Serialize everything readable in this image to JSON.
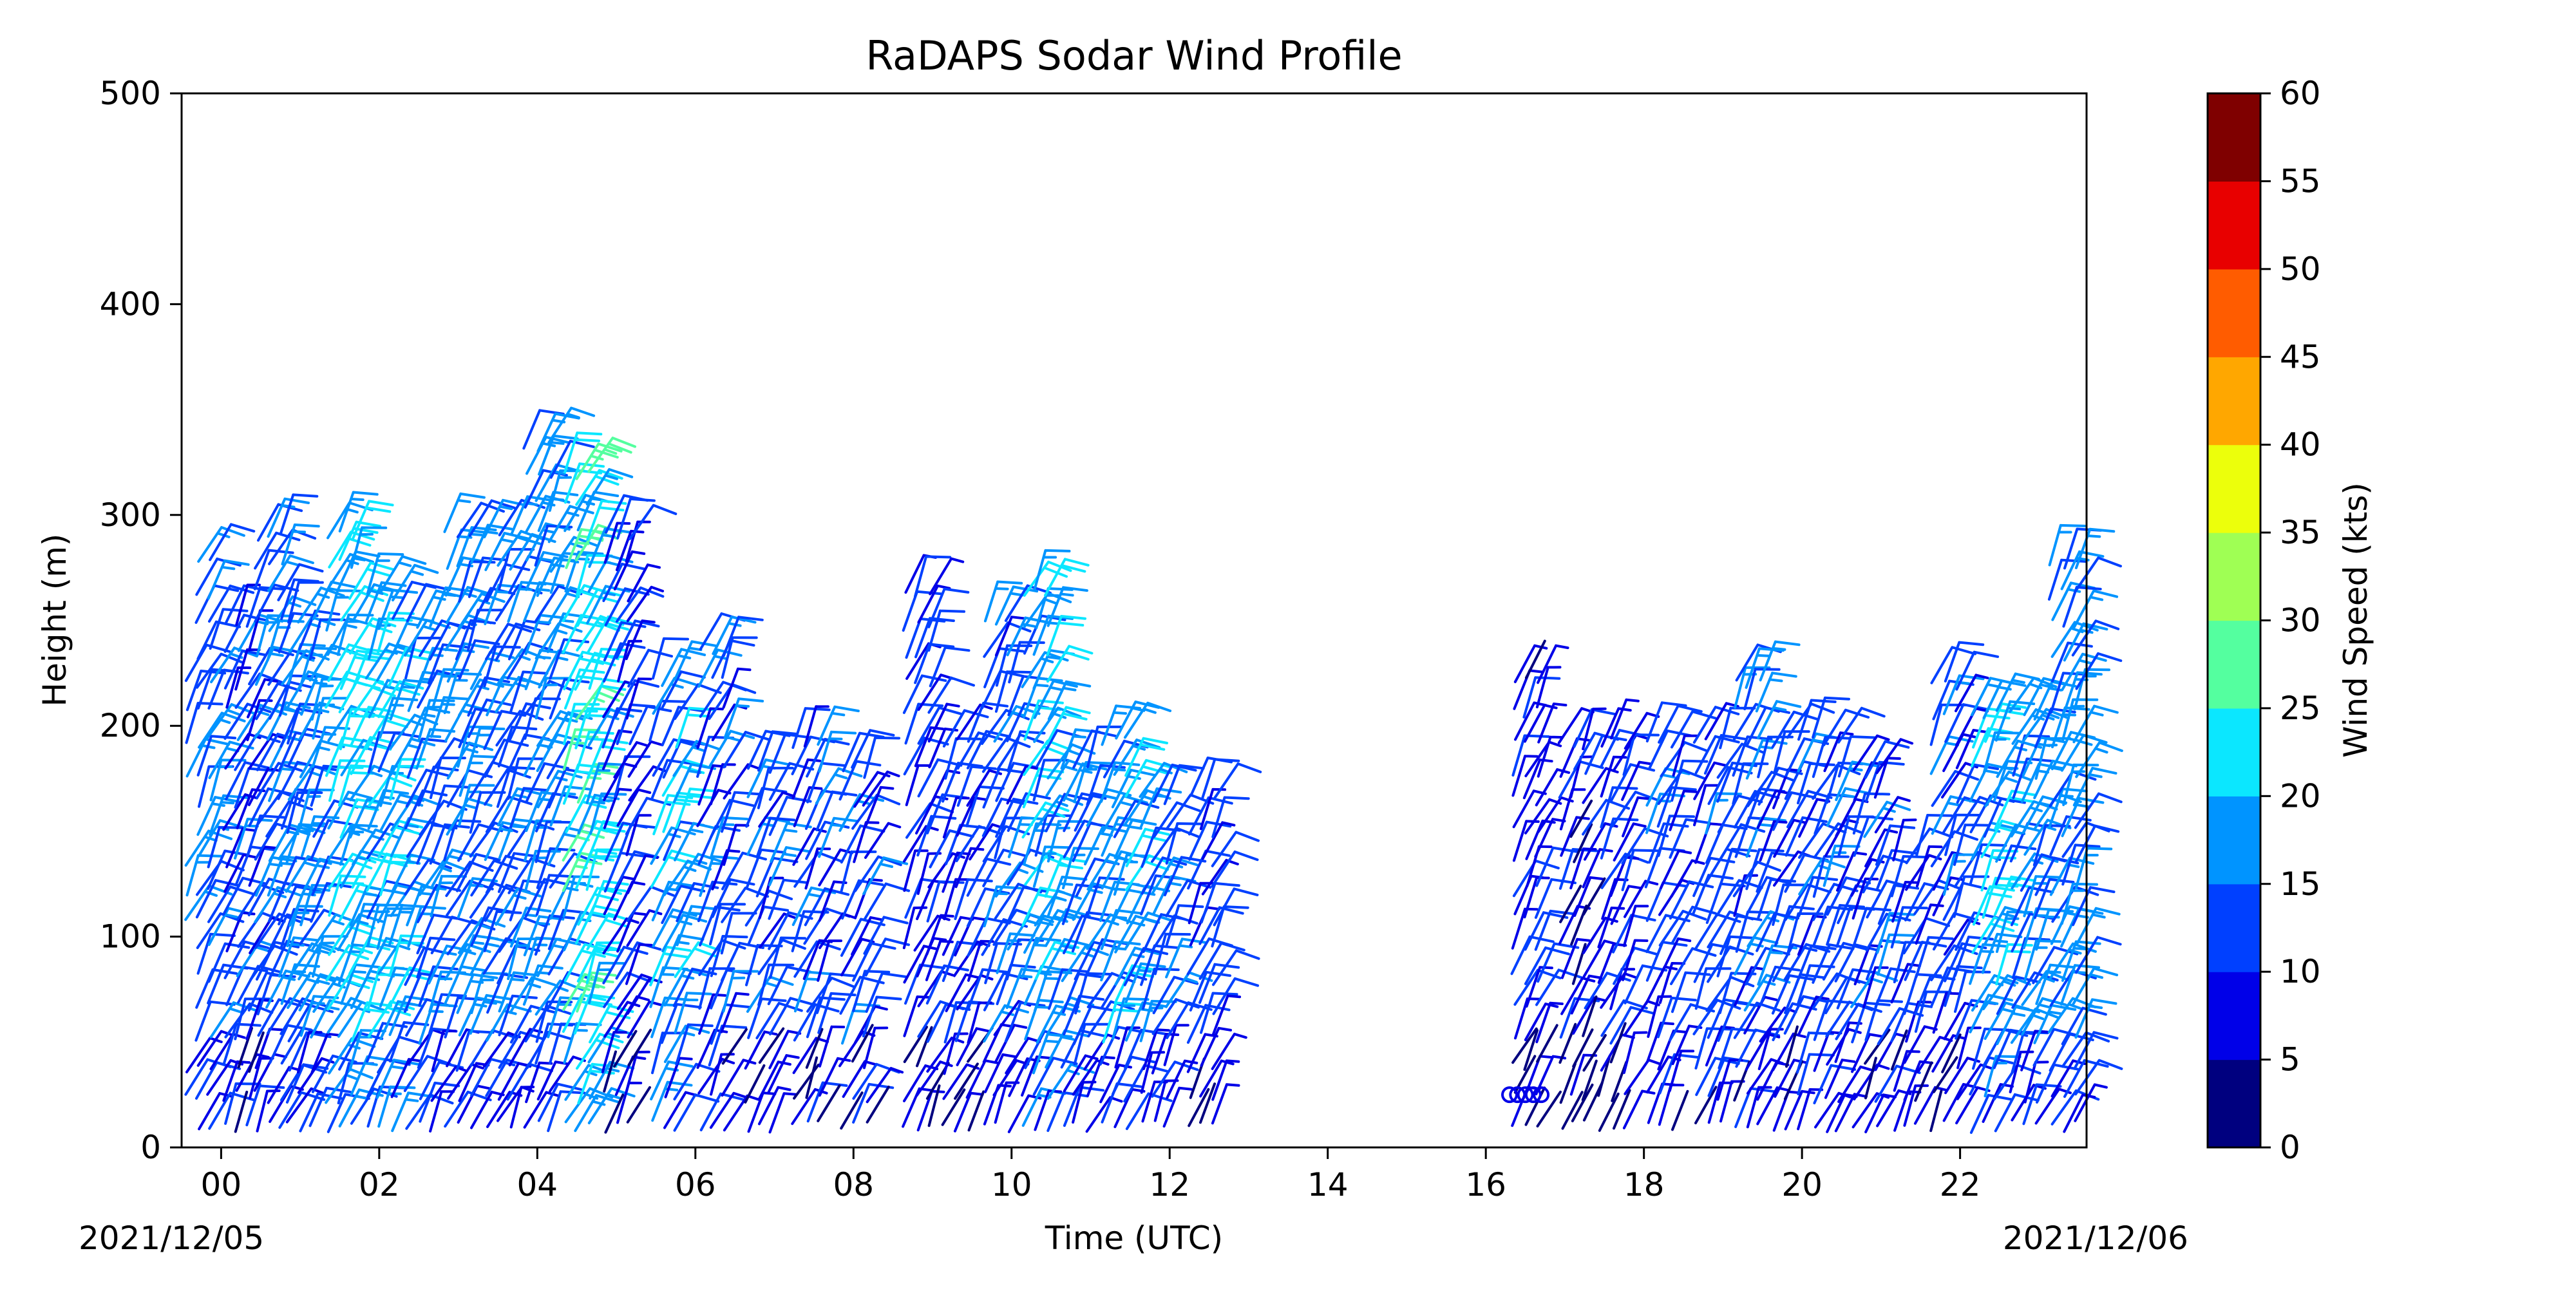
{
  "chart_data": {
    "type": "wind-barbs",
    "title": "RaDAPS Sodar Wind Profile",
    "xlabel": "Time (UTC)",
    "ylabel": "Height (m)",
    "date_start": "2021/12/05",
    "date_end": "2021/12/06",
    "xlim": [
      -0.5,
      23.6
    ],
    "ylim": [
      0,
      500
    ],
    "x_ticks": [
      "00",
      "02",
      "04",
      "06",
      "08",
      "10",
      "12",
      "14",
      "16",
      "18",
      "20",
      "22"
    ],
    "y_ticks": [
      0,
      100,
      200,
      300,
      400,
      500
    ],
    "colorbar": {
      "label": "Wind Speed (kts)",
      "ticks": [
        0,
        5,
        10,
        15,
        20,
        25,
        30,
        35,
        40,
        45,
        50,
        55,
        60
      ],
      "colors": [
        "#00007f",
        "#0000e8",
        "#0040ff",
        "#0094ff",
        "#0be7ff",
        "#54ff9f",
        "#9fff54",
        "#ecff0b",
        "#ffa700",
        "#ff5c00",
        "#e80000",
        "#7f0000"
      ]
    },
    "profiles": [
      {
        "t": -0.3,
        "top": 280,
        "speed": 14
      },
      {
        "t": 0.2,
        "top": 250,
        "speed": 12
      },
      {
        "t": 0.6,
        "top": 290,
        "speed": 14
      },
      {
        "t": 1.0,
        "top": 250,
        "speed": 16
      },
      {
        "t": 1.5,
        "top": 290,
        "speed": 20
      },
      {
        "t": 2.0,
        "top": 270,
        "speed": 18
      },
      {
        "t": 2.5,
        "top": 250,
        "speed": 14
      },
      {
        "t": 3.0,
        "top": 300,
        "speed": 15
      },
      {
        "t": 3.5,
        "top": 300,
        "speed": 14
      },
      {
        "t": 4.0,
        "top": 340,
        "speed": 16
      },
      {
        "t": 4.5,
        "top": 320,
        "speed": 22
      },
      {
        "t": 5.0,
        "top": 290,
        "speed": 10
      },
      {
        "t": 5.6,
        "top": 220,
        "speed": 18
      },
      {
        "t": 6.2,
        "top": 245,
        "speed": 12
      },
      {
        "t": 6.8,
        "top": 190,
        "speed": 12
      },
      {
        "t": 7.4,
        "top": 195,
        "speed": 12
      },
      {
        "t": 8.0,
        "top": 185,
        "speed": 12
      },
      {
        "t": 8.8,
        "top": 265,
        "speed": 10
      },
      {
        "t": 9.3,
        "top": 200,
        "speed": 10
      },
      {
        "t": 9.8,
        "top": 250,
        "speed": 13
      },
      {
        "t": 10.3,
        "top": 275,
        "speed": 18
      },
      {
        "t": 10.8,
        "top": 180,
        "speed": 14
      },
      {
        "t": 11.3,
        "top": 200,
        "speed": 17
      },
      {
        "t": 11.8,
        "top": 175,
        "speed": 14
      },
      {
        "t": 12.4,
        "top": 175,
        "speed": 11
      },
      {
        "t": 16.5,
        "top": 225,
        "speed": 8
      },
      {
        "t": 17.1,
        "top": 195,
        "speed": 8
      },
      {
        "t": 17.6,
        "top": 195,
        "speed": 9
      },
      {
        "t": 18.2,
        "top": 200,
        "speed": 12
      },
      {
        "t": 18.8,
        "top": 200,
        "speed": 12
      },
      {
        "t": 19.3,
        "top": 225,
        "speed": 13
      },
      {
        "t": 19.8,
        "top": 200,
        "speed": 12
      },
      {
        "t": 20.3,
        "top": 195,
        "speed": 12
      },
      {
        "t": 20.8,
        "top": 180,
        "speed": 12
      },
      {
        "t": 21.3,
        "top": 140,
        "speed": 11
      },
      {
        "t": 21.8,
        "top": 225,
        "speed": 12
      },
      {
        "t": 22.3,
        "top": 215,
        "speed": 18
      },
      {
        "t": 22.8,
        "top": 215,
        "speed": 16
      },
      {
        "t": 23.3,
        "top": 280,
        "speed": 16
      }
    ],
    "calm_circles": [
      {
        "t": 16.3,
        "h": 25
      },
      {
        "t": 16.4,
        "h": 25
      },
      {
        "t": 16.5,
        "h": 25
      },
      {
        "t": 16.6,
        "h": 25
      },
      {
        "t": 16.7,
        "h": 25
      }
    ]
  }
}
